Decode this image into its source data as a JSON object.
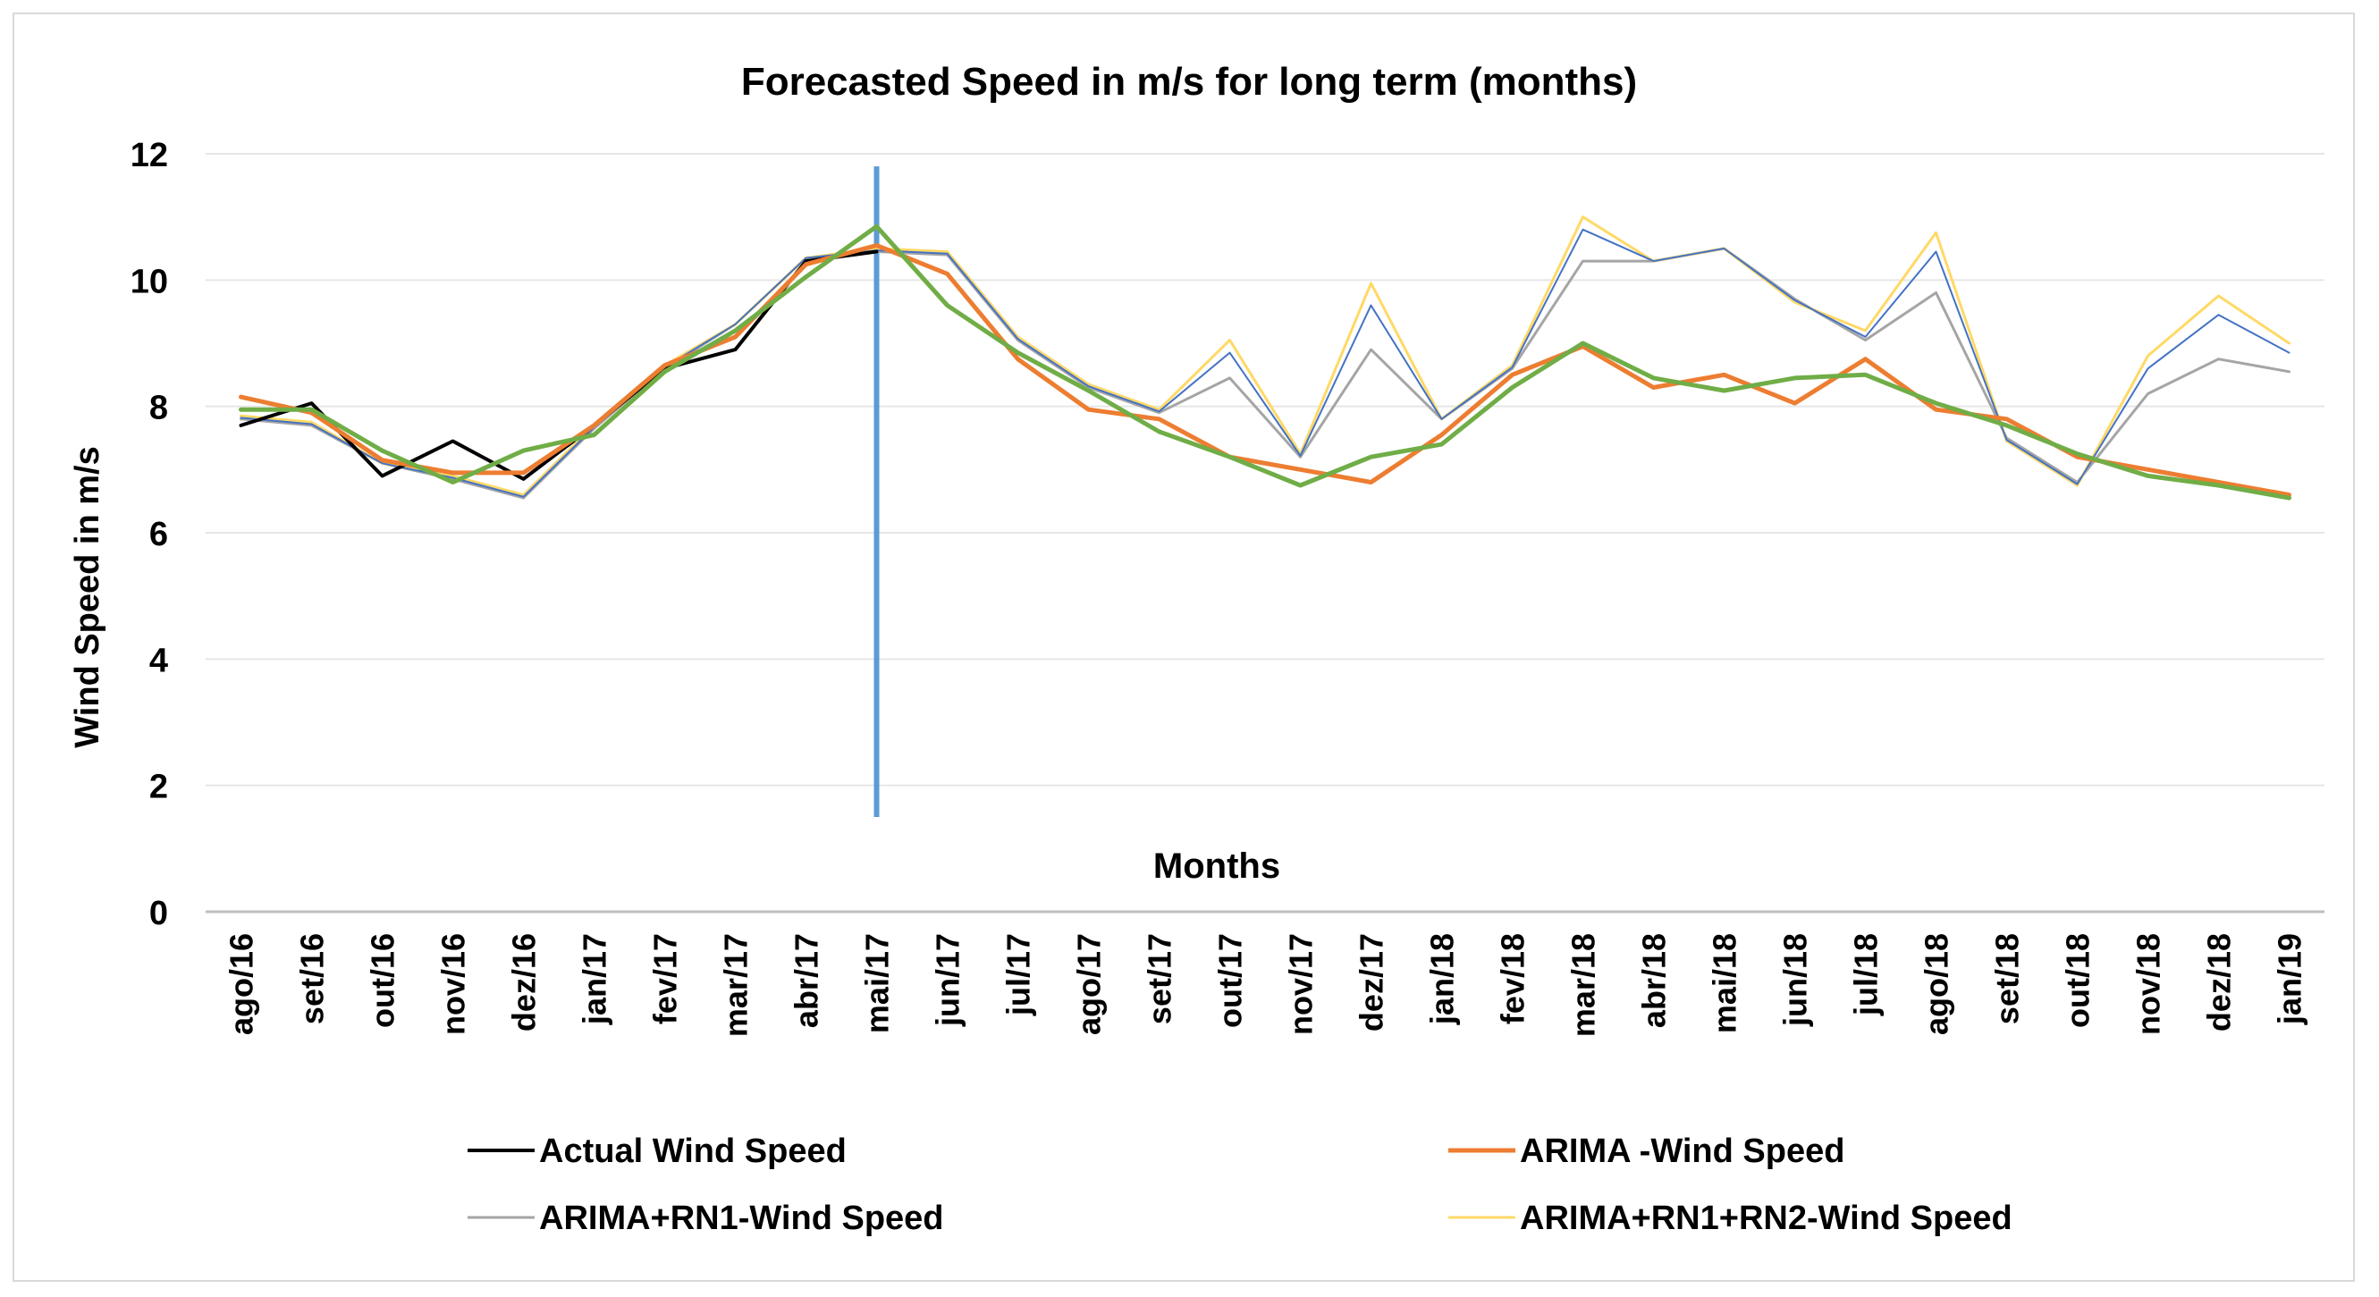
{
  "chart_data": {
    "type": "line",
    "title": "Forecasted Speed in m/s for long term (months)",
    "xlabel": "Months",
    "ylabel": "Wind Speed in m/s",
    "ylim": [
      0,
      12
    ],
    "yticks": [
      0,
      2,
      4,
      6,
      8,
      10,
      12
    ],
    "grid": true,
    "legend_position": "bottom",
    "vertical_marker": {
      "category": "mai/17",
      "from": 1.5,
      "to": 11.8,
      "color": "#5b9bd5"
    },
    "categories": [
      "ago/16",
      "set/16",
      "out/16",
      "nov/16",
      "dez/16",
      "jan/17",
      "fev/17",
      "mar/17",
      "abr/17",
      "mai/17",
      "jun/17",
      "jul/17",
      "ago/17",
      "set/17",
      "out/17",
      "nov/17",
      "dez/17",
      "jan/18",
      "fev/18",
      "mar/18",
      "abr/18",
      "mai/18",
      "jun/18",
      "jul/18",
      "ago/18",
      "set/18",
      "out/18",
      "nov/18",
      "dez/18",
      "jan/19"
    ],
    "series": [
      {
        "name": "Actual Wind Speed",
        "color": "#000000",
        "width": 4,
        "legend": true,
        "values": [
          7.7,
          8.05,
          6.9,
          7.45,
          6.85,
          7.7,
          8.6,
          8.9,
          10.3,
          10.45,
          null,
          null,
          null,
          null,
          null,
          null,
          null,
          null,
          null,
          null,
          null,
          null,
          null,
          null,
          null,
          null,
          null,
          null,
          null,
          null
        ]
      },
      {
        "name": "ARIMA -Wind Speed",
        "color": "#ed7d31",
        "width": 5,
        "legend": true,
        "values": [
          8.15,
          7.9,
          7.15,
          6.95,
          6.95,
          7.7,
          8.65,
          9.1,
          10.25,
          10.55,
          10.1,
          8.75,
          7.95,
          7.8,
          7.2,
          7.0,
          6.8,
          7.55,
          8.5,
          8.95,
          8.3,
          8.5,
          8.05,
          8.75,
          7.95,
          7.8,
          7.2,
          7.0,
          6.8,
          6.6
        ]
      },
      {
        "name": "ARIMA+RN1-Wind Speed",
        "color": "#a5a5a5",
        "width": 3,
        "legend": true,
        "values": [
          7.8,
          7.7,
          7.1,
          6.85,
          6.55,
          7.65,
          8.6,
          9.3,
          10.35,
          10.45,
          10.4,
          9.05,
          8.3,
          7.9,
          8.45,
          7.2,
          8.9,
          7.8,
          8.6,
          10.3,
          10.3,
          10.5,
          9.7,
          9.05,
          9.8,
          7.5,
          6.8,
          8.2,
          8.75,
          8.55
        ]
      },
      {
        "name": "ARIMA+RN1+RN2-Wind Speed",
        "color": "#ffd966",
        "width": 3,
        "legend": true,
        "values": [
          7.85,
          7.75,
          7.1,
          6.9,
          6.6,
          7.7,
          8.65,
          9.3,
          10.35,
          10.5,
          10.45,
          9.1,
          8.35,
          7.95,
          9.05,
          7.25,
          9.95,
          7.8,
          8.65,
          11.0,
          10.3,
          10.5,
          9.65,
          9.2,
          10.75,
          7.45,
          6.75,
          8.8,
          9.75,
          9.0
        ]
      },
      {
        "name": "",
        "color": "#4472c4",
        "width": 2,
        "legend": false,
        "values": [
          7.82,
          7.72,
          7.1,
          6.87,
          6.57,
          7.67,
          8.62,
          9.3,
          10.35,
          10.47,
          10.42,
          9.07,
          8.32,
          7.92,
          8.85,
          7.22,
          9.6,
          7.8,
          8.62,
          10.8,
          10.3,
          10.5,
          9.68,
          9.1,
          10.45,
          7.47,
          6.77,
          8.6,
          9.45,
          8.85
        ]
      },
      {
        "name": "",
        "color": "#70ad47",
        "width": 5,
        "legend": false,
        "values": [
          7.95,
          7.95,
          7.3,
          6.8,
          7.3,
          7.55,
          8.55,
          9.2,
          10.05,
          10.85,
          9.6,
          8.85,
          8.25,
          7.6,
          7.2,
          6.75,
          7.2,
          7.4,
          8.3,
          9.0,
          8.45,
          8.25,
          8.45,
          8.5,
          8.05,
          7.7,
          7.25,
          6.9,
          6.75,
          6.55
        ]
      }
    ]
  }
}
